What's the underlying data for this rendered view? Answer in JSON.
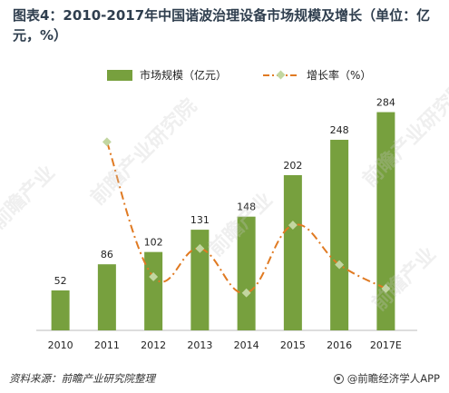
{
  "title": "图表4：2010-2017年中国谐波治理设备市场规模及增长（单位：亿元，%）",
  "legend": {
    "bar_label": "市场规模（亿元）",
    "line_label": "增长率（%）"
  },
  "footer": {
    "source": "资料来源：前瞻产业研究院整理",
    "brand": "@前瞻经济学人APP"
  },
  "watermarks": [
    "前瞻产业",
    "前瞻产业研究院",
    "前瞻产业",
    "前瞻产业研究院",
    "前瞻产业"
  ],
  "colors": {
    "bar": "#77a03e",
    "line": "#e07a22",
    "marker": "#c2d6a0",
    "axis": "#bbbbbb",
    "text": "#222222"
  },
  "chart_data": {
    "type": "bar",
    "categories": [
      "2010",
      "2011",
      "2012",
      "2013",
      "2014",
      "2015",
      "2016",
      "2017E"
    ],
    "series": [
      {
        "name": "市场规模（亿元）",
        "type": "bar",
        "values": [
          52,
          86,
          102,
          131,
          148,
          202,
          248,
          284
        ]
      },
      {
        "name": "增长率（%）",
        "type": "line",
        "values": [
          null,
          65.4,
          18.6,
          28.4,
          13.0,
          36.5,
          22.8,
          14.5
        ]
      }
    ],
    "ylim": [
      0,
      300
    ],
    "line_ylim": [
      0,
      80
    ],
    "grid": false,
    "legend_position": "top"
  }
}
